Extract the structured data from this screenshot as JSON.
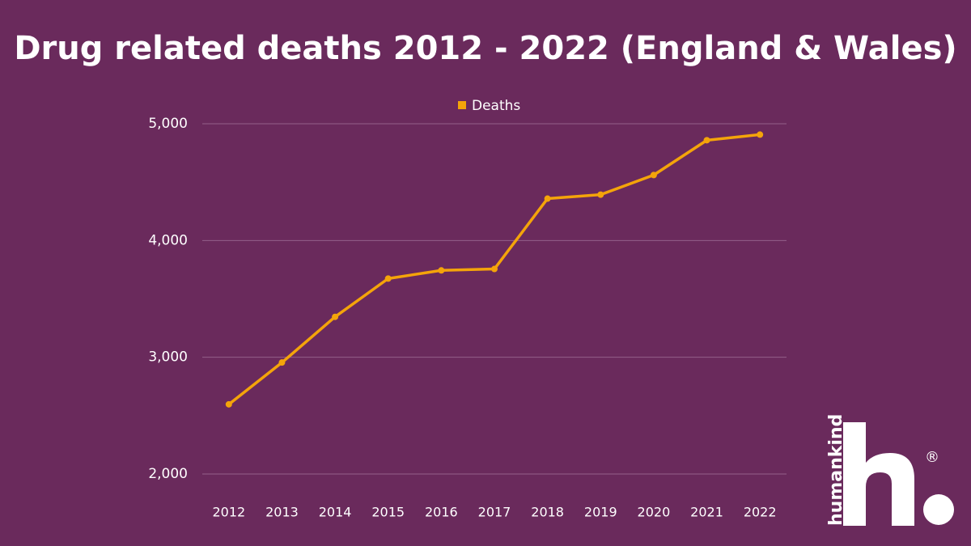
{
  "chart_data": {
    "type": "line",
    "title": "Drug related deaths 2012 - 2022 (England & Wales)",
    "categories": [
      "2012",
      "2013",
      "2014",
      "2015",
      "2016",
      "2017",
      "2018",
      "2019",
      "2020",
      "2021",
      "2022"
    ],
    "series": [
      {
        "name": "Deaths",
        "color": "#f4a40a",
        "values": [
          2597,
          2955,
          3346,
          3674,
          3744,
          3756,
          4359,
          4393,
          4561,
          4859,
          4907
        ]
      }
    ],
    "ylim": [
      2000,
      5000
    ],
    "yticks": [
      {
        "value": 2000,
        "label": "2,000"
      },
      {
        "value": 3000,
        "label": "3,000"
      },
      {
        "value": 4000,
        "label": "4,000"
      },
      {
        "value": 5000,
        "label": "5,000"
      }
    ],
    "grid": true,
    "legend": "top"
  },
  "logo": {
    "text": "humankind",
    "mark": "®"
  }
}
